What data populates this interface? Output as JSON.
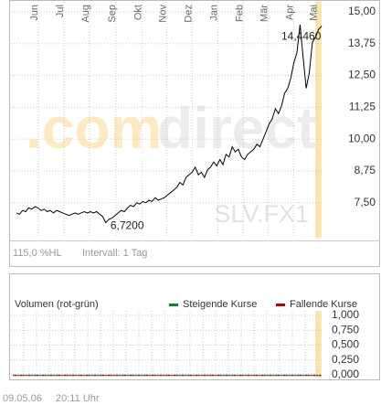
{
  "chart_data": [
    {
      "type": "line",
      "color": "#000000",
      "grid": true,
      "values": [
        7.1,
        7.05,
        7.2,
        7.15,
        7.3,
        7.25,
        7.35,
        7.3,
        7.2,
        7.25,
        7.15,
        7.2,
        7.1,
        7.2,
        7.15,
        7.1,
        7.05,
        7.0,
        7.05,
        7.1,
        7.05,
        7.1,
        7.15,
        7.1,
        7.15,
        7.1,
        7.15,
        7.05,
        6.95,
        6.72,
        6.85,
        6.9,
        7.0,
        7.1,
        7.2,
        7.15,
        7.3,
        7.4,
        7.35,
        7.5,
        7.45,
        7.55,
        7.5,
        7.6,
        7.55,
        7.7,
        7.6,
        7.65,
        7.7,
        7.8,
        7.9,
        8.0,
        8.1,
        8.3,
        8.2,
        8.5,
        8.6,
        8.7,
        8.9,
        8.6,
        8.7,
        8.5,
        8.8,
        8.9,
        9.1,
        8.95,
        9.2,
        9.0,
        9.4,
        9.3,
        9.7,
        9.5,
        9.6,
        9.3,
        9.2,
        9.4,
        9.5,
        9.6,
        9.8,
        9.7,
        10.0,
        10.3,
        10.6,
        10.8,
        11.2,
        11.0,
        11.3,
        11.8,
        12.0,
        12.4,
        13.0,
        13.4,
        14.5,
        13.2,
        12.0,
        12.6,
        13.8,
        14.0,
        14.3,
        14.446
      ],
      "xlim": [
        0,
        99
      ],
      "xticks": [
        {
          "value": 7.1,
          "label": "Jun"
        },
        {
          "value": 15.4,
          "label": "Jul"
        },
        {
          "value": 23.7,
          "label": "Aug"
        },
        {
          "value": 32.3,
          "label": "Sep"
        },
        {
          "value": 40.7,
          "label": "Okt"
        },
        {
          "value": 48.7,
          "label": "Nov"
        },
        {
          "value": 57,
          "label": "Dez"
        },
        {
          "value": 65.3,
          "label": "Jan"
        },
        {
          "value": 73.6,
          "label": "Feb"
        },
        {
          "value": 81.6,
          "label": "Mär"
        },
        {
          "value": 89.9,
          "label": "Apr"
        },
        {
          "value": 97.6,
          "label": "Mai"
        }
      ],
      "ylim": [
        6.2,
        15.3
      ],
      "yticks": [
        {
          "value": 15,
          "label": "15,00"
        },
        {
          "value": 13.75,
          "label": "13,75"
        },
        {
          "value": 12.5,
          "label": "12,50"
        },
        {
          "value": 11.25,
          "label": "11,25"
        },
        {
          "value": 10,
          "label": "10,00"
        },
        {
          "value": 8.75,
          "label": "8,75"
        },
        {
          "value": 7.5,
          "label": "7,50"
        }
      ],
      "annotations": [
        {
          "value": 14.446,
          "label": "14,4460"
        },
        {
          "value": 6.72,
          "label": "6,7200"
        }
      ],
      "watermark": [
        ".com",
        "direct"
      ],
      "symbol": "SLV.FX1",
      "footer": [
        "115,0 %HL",
        "Intervall: 1 Tag"
      ]
    },
    {
      "type": "volume",
      "title": "Volumen (rot-grün)",
      "series": [
        {
          "name": "Steigende Kurse",
          "color": "#1a7a3a"
        },
        {
          "name": "Fallende Kurse",
          "color": "#c00000"
        }
      ],
      "ylim": [
        0,
        1
      ],
      "yticks": [
        {
          "value": 1,
          "label": "1,000"
        },
        {
          "value": 0.75,
          "label": "0,750"
        },
        {
          "value": 0.5,
          "label": "0,500"
        },
        {
          "value": 0.25,
          "label": "0,250"
        },
        {
          "value": 0,
          "label": "0,000"
        }
      ]
    }
  ],
  "footer": [
    "09.05.06",
    "20:11 Uhr"
  ]
}
